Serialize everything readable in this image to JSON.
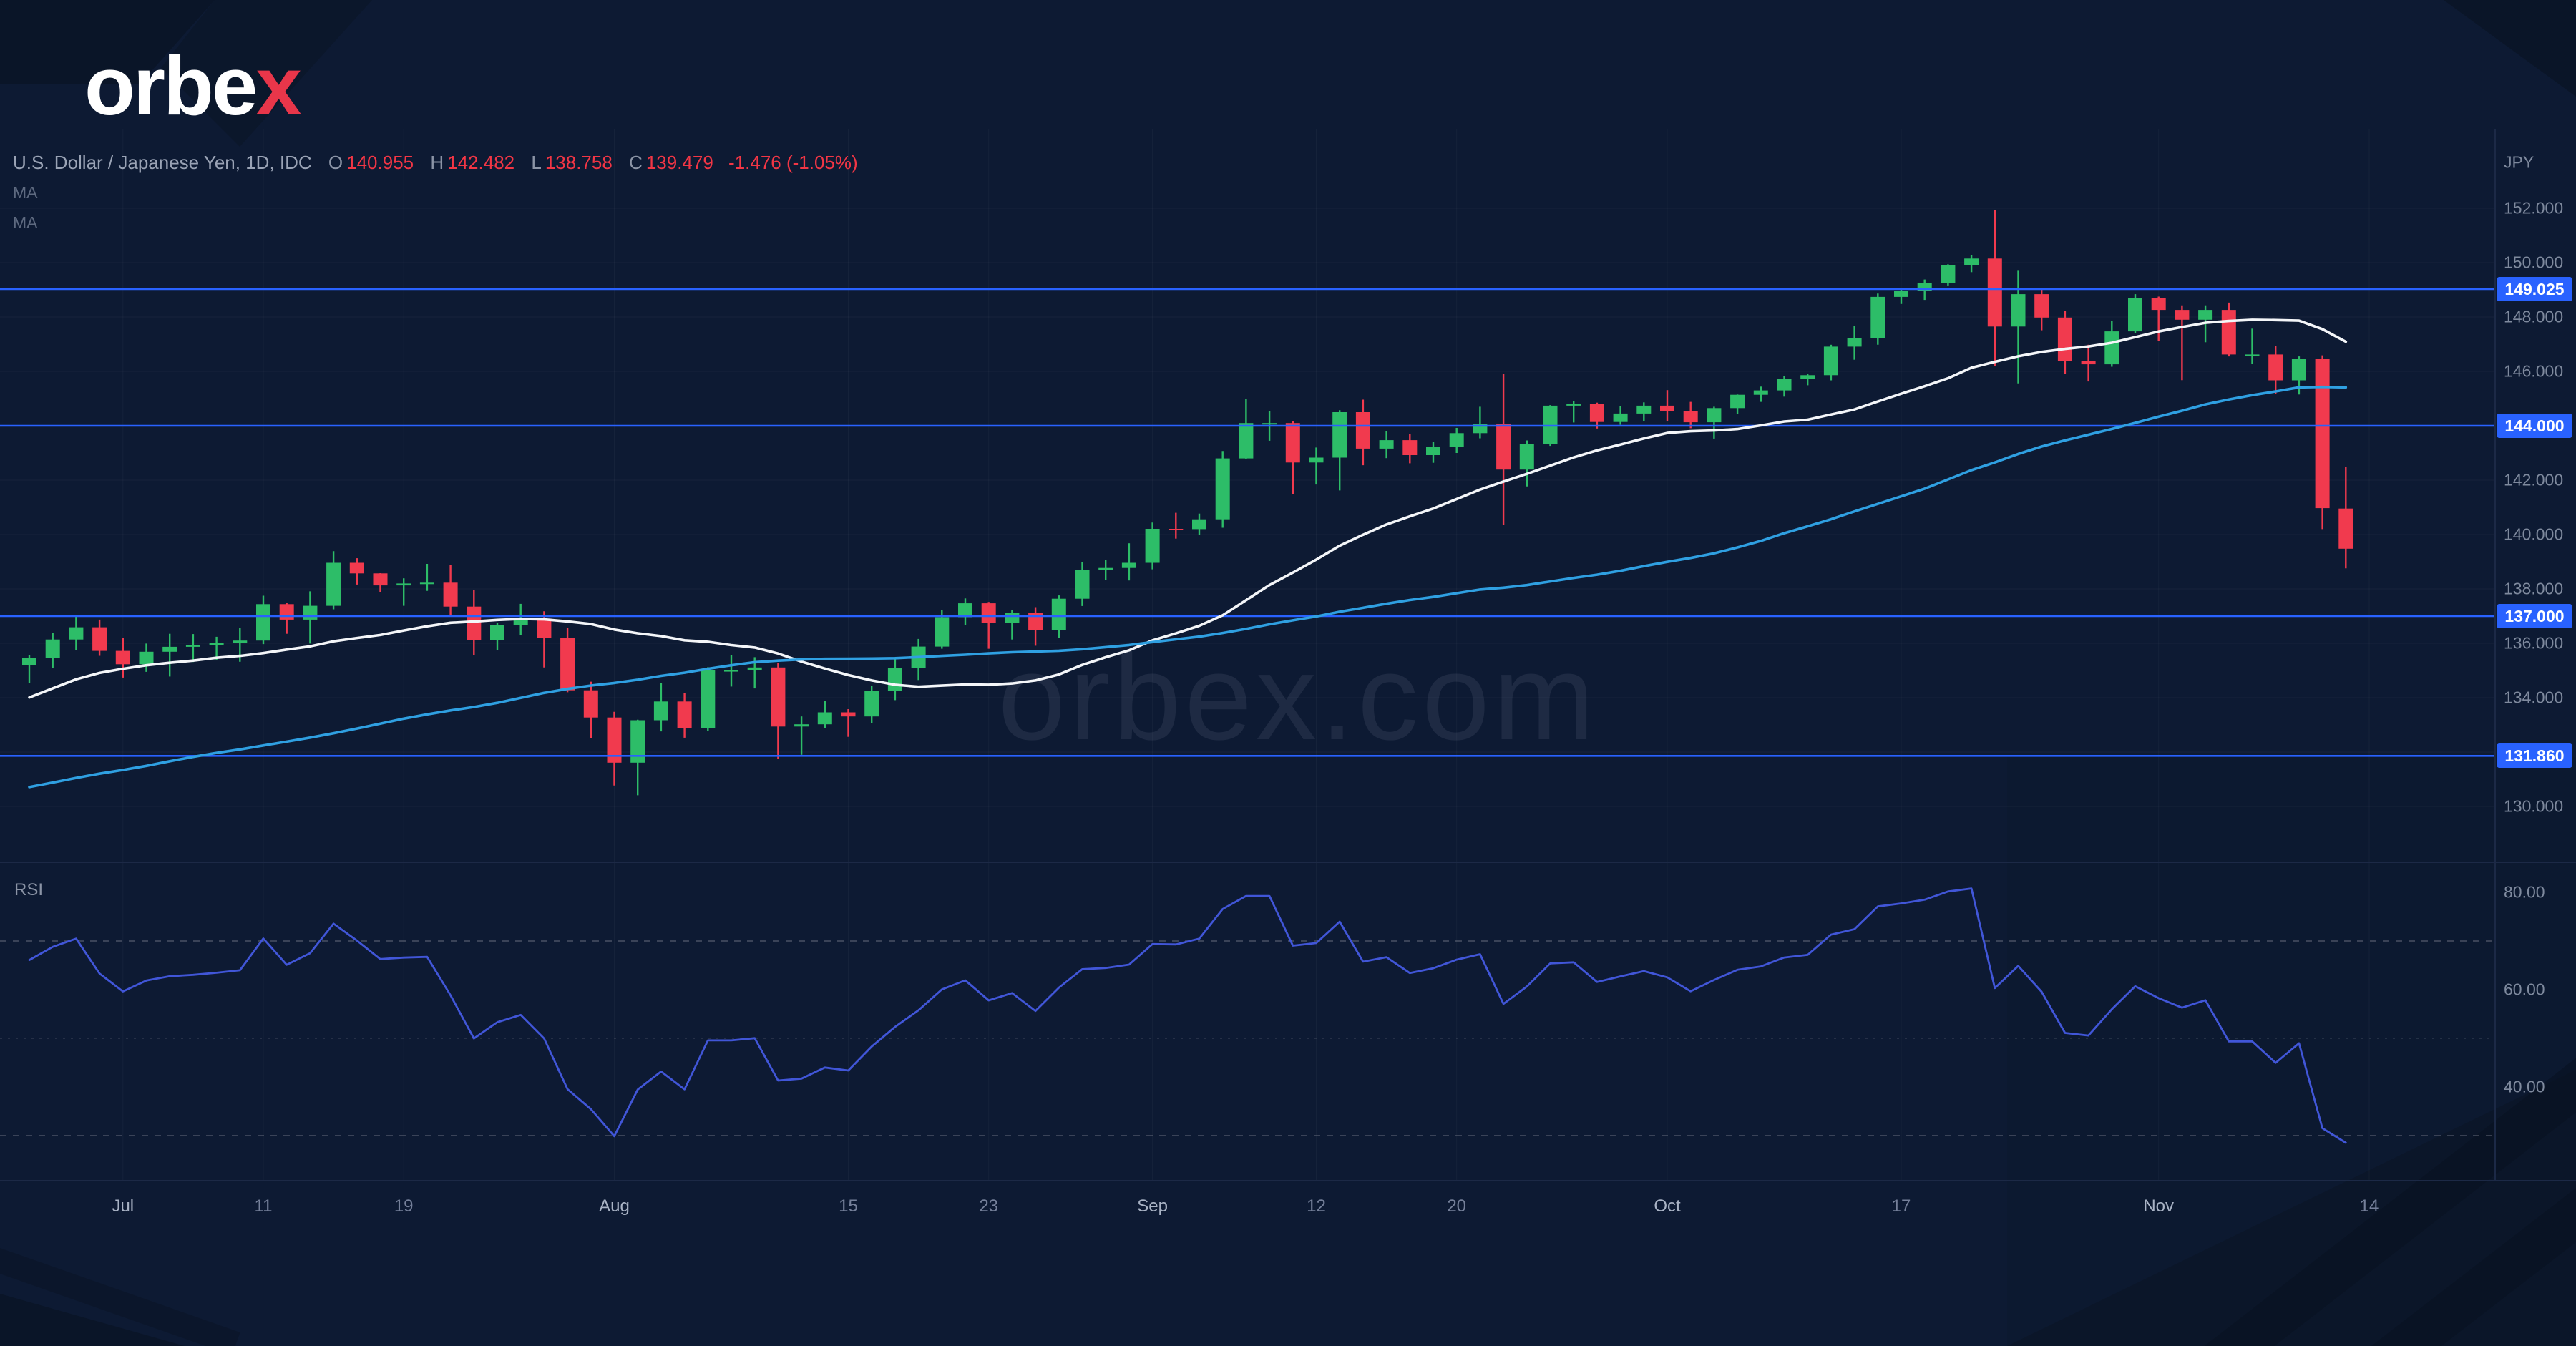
{
  "meta": {
    "watermark": "orbex.com"
  },
  "logo": {
    "text_main": "orbe",
    "text_x": "x"
  },
  "header": {
    "symbol_title": "U.S. Dollar / Japanese Yen, 1D, IDC",
    "ohlc": {
      "o_label": "O",
      "o": "140.955",
      "h_label": "H",
      "h": "142.482",
      "l_label": "L",
      "l": "138.758",
      "c_label": "C",
      "c": "139.479",
      "change": "-1.476 (-1.05%)"
    },
    "ma_labels": [
      "MA",
      "MA"
    ]
  },
  "price_axis": {
    "currency_label": "JPY",
    "ticks": [
      {
        "v": 152,
        "label": "152.000"
      },
      {
        "v": 150,
        "label": "150.000"
      },
      {
        "v": 148,
        "label": "148.000"
      },
      {
        "v": 146,
        "label": "146.000"
      },
      {
        "v": 142,
        "label": "142.000"
      },
      {
        "v": 140,
        "label": "140.000"
      },
      {
        "v": 138,
        "label": "138.000"
      },
      {
        "v": 136,
        "label": "136.000"
      },
      {
        "v": 134,
        "label": "134.000"
      },
      {
        "v": 130,
        "label": "130.000"
      }
    ],
    "badges": [
      {
        "price": 149.025,
        "label": "149.025"
      },
      {
        "price": 144.0,
        "label": "144.000"
      },
      {
        "price": 137.0,
        "label": "137.000"
      },
      {
        "price": 131.86,
        "label": "131.860"
      }
    ]
  },
  "time_axis": {
    "labels": [
      {
        "text": "Jul",
        "i": 4,
        "major": true
      },
      {
        "text": "11",
        "i": 10,
        "major": false
      },
      {
        "text": "19",
        "i": 16,
        "major": false
      },
      {
        "text": "Aug",
        "i": 25,
        "major": true
      },
      {
        "text": "15",
        "i": 35,
        "major": false
      },
      {
        "text": "23",
        "i": 41,
        "major": false
      },
      {
        "text": "Sep",
        "i": 48,
        "major": true
      },
      {
        "text": "12",
        "i": 55,
        "major": false
      },
      {
        "text": "20",
        "i": 61,
        "major": false
      },
      {
        "text": "Oct",
        "i": 70,
        "major": true
      },
      {
        "text": "17",
        "i": 80,
        "major": false
      },
      {
        "text": "Nov",
        "i": 91,
        "major": true
      },
      {
        "text": "14",
        "i": 100,
        "major": false
      }
    ]
  },
  "rsi": {
    "label": "RSI",
    "ticks": [
      {
        "v": 80,
        "label": "80.00"
      },
      {
        "v": 60,
        "label": "60.00"
      },
      {
        "v": 40,
        "label": "40.00"
      }
    ],
    "dashed_levels": [
      70,
      30
    ],
    "mid_level": 50
  },
  "colors": {
    "background": "#0d1a33",
    "accent_blue": "#2962ff",
    "bull": "#2dbd68",
    "bear": "#f13a4e",
    "axis_text": "#7f8a9e",
    "value_red": "#f23645",
    "logo_red": "#e8364a",
    "grid": "rgba(255,255,255,0.045)",
    "rsi_dash": "#7b7f8d",
    "separator": "#1c2946"
  },
  "chart_data": {
    "type": "candlestick",
    "symbol": "USDJPY",
    "timeframe": "1D",
    "title": "U.S. Dollar / Japanese Yen, 1D, IDC",
    "y_range_displayed": [
      130,
      152
    ],
    "level_lines": [
      149.025,
      144.0,
      137.0,
      131.86
    ],
    "candles": [
      [
        135.2,
        135.57,
        134.53,
        135.47
      ],
      [
        135.47,
        136.37,
        135.09,
        136.14
      ],
      [
        136.14,
        137.0,
        135.74,
        136.59
      ],
      [
        136.59,
        136.87,
        135.54,
        135.72
      ],
      [
        135.72,
        136.2,
        134.74,
        135.23
      ],
      [
        135.23,
        135.99,
        134.95,
        135.69
      ],
      [
        135.69,
        136.35,
        134.78,
        135.87
      ],
      [
        135.87,
        136.34,
        135.31,
        135.93
      ],
      [
        135.93,
        136.24,
        135.37,
        136.01
      ],
      [
        136.01,
        136.56,
        135.32,
        136.1
      ],
      [
        136.1,
        137.75,
        135.97,
        137.44
      ],
      [
        137.44,
        137.49,
        136.35,
        136.87
      ],
      [
        136.87,
        137.91,
        135.99,
        137.38
      ],
      [
        137.38,
        139.39,
        137.25,
        138.96
      ],
      [
        138.96,
        139.13,
        138.16,
        138.57
      ],
      [
        138.57,
        138.58,
        137.89,
        138.13
      ],
      [
        138.13,
        138.39,
        137.38,
        138.2
      ],
      [
        138.2,
        138.92,
        137.93,
        138.23
      ],
      [
        138.23,
        138.88,
        137.03,
        137.35
      ],
      [
        137.35,
        137.96,
        135.57,
        136.12
      ],
      [
        136.12,
        136.75,
        135.74,
        136.66
      ],
      [
        136.66,
        137.45,
        136.3,
        136.91
      ],
      [
        136.91,
        137.18,
        135.11,
        136.21
      ],
      [
        136.21,
        136.57,
        134.2,
        134.27
      ],
      [
        134.27,
        134.59,
        132.5,
        133.27
      ],
      [
        133.27,
        133.48,
        130.77,
        131.61
      ],
      [
        131.61,
        133.19,
        130.41,
        133.17
      ],
      [
        133.17,
        134.55,
        132.76,
        133.86
      ],
      [
        133.86,
        134.18,
        132.53,
        132.89
      ],
      [
        132.89,
        135.12,
        132.77,
        135.01
      ],
      [
        135.01,
        135.58,
        134.41,
        135.01
      ],
      [
        135.01,
        135.49,
        134.34,
        135.11
      ],
      [
        135.11,
        135.29,
        131.74,
        132.94
      ],
      [
        132.94,
        133.31,
        131.9,
        133.02
      ],
      [
        133.02,
        133.89,
        132.87,
        133.46
      ],
      [
        133.46,
        133.58,
        132.56,
        133.31
      ],
      [
        133.31,
        134.44,
        133.06,
        134.25
      ],
      [
        134.25,
        135.49,
        133.91,
        135.1
      ],
      [
        135.1,
        136.16,
        134.65,
        135.88
      ],
      [
        135.88,
        137.23,
        135.8,
        136.96
      ],
      [
        136.96,
        137.65,
        136.67,
        137.47
      ],
      [
        137.47,
        137.52,
        135.8,
        136.75
      ],
      [
        136.75,
        137.23,
        136.14,
        137.12
      ],
      [
        137.12,
        137.33,
        135.91,
        136.48
      ],
      [
        136.48,
        137.76,
        136.21,
        137.64
      ],
      [
        137.64,
        139.0,
        137.37,
        138.7
      ],
      [
        138.7,
        139.08,
        138.32,
        138.77
      ],
      [
        138.77,
        139.68,
        138.31,
        138.96
      ],
      [
        138.96,
        140.44,
        138.72,
        140.21
      ],
      [
        140.21,
        140.8,
        139.85,
        140.2
      ],
      [
        140.2,
        140.77,
        139.98,
        140.56
      ],
      [
        140.56,
        143.07,
        140.25,
        142.8
      ],
      [
        142.8,
        144.99,
        142.77,
        144.1
      ],
      [
        144.1,
        144.54,
        143.45,
        144.1
      ],
      [
        144.1,
        144.16,
        141.5,
        142.65
      ],
      [
        142.65,
        143.2,
        141.84,
        142.83
      ],
      [
        142.83,
        144.57,
        141.62,
        144.5
      ],
      [
        144.5,
        144.96,
        142.55,
        143.16
      ],
      [
        143.16,
        143.8,
        142.81,
        143.47
      ],
      [
        143.47,
        143.69,
        142.62,
        142.92
      ],
      [
        142.92,
        143.42,
        142.64,
        143.21
      ],
      [
        143.21,
        143.92,
        143.0,
        143.73
      ],
      [
        143.73,
        144.7,
        143.54,
        144.06
      ],
      [
        144.06,
        145.9,
        140.36,
        142.39
      ],
      [
        142.39,
        143.46,
        141.77,
        143.32
      ],
      [
        143.32,
        144.76,
        143.26,
        144.74
      ],
      [
        144.74,
        144.91,
        144.12,
        144.81
      ],
      [
        144.81,
        144.85,
        143.9,
        144.14
      ],
      [
        144.14,
        144.73,
        144.04,
        144.45
      ],
      [
        144.45,
        144.86,
        144.17,
        144.74
      ],
      [
        144.74,
        145.31,
        144.16,
        144.55
      ],
      [
        144.55,
        144.88,
        143.91,
        144.13
      ],
      [
        144.13,
        144.7,
        143.53,
        144.65
      ],
      [
        144.65,
        145.15,
        144.42,
        145.14
      ],
      [
        145.14,
        145.44,
        144.88,
        145.3
      ],
      [
        145.3,
        145.82,
        145.07,
        145.73
      ],
      [
        145.73,
        145.9,
        145.49,
        145.86
      ],
      [
        145.86,
        146.98,
        145.67,
        146.91
      ],
      [
        146.91,
        147.67,
        146.43,
        147.22
      ],
      [
        147.22,
        148.86,
        146.98,
        148.74
      ],
      [
        148.74,
        149.08,
        148.48,
        148.97
      ],
      [
        148.97,
        149.38,
        148.63,
        149.25
      ],
      [
        149.25,
        149.94,
        149.16,
        149.9
      ],
      [
        149.9,
        150.29,
        149.65,
        150.15
      ],
      [
        150.15,
        151.94,
        146.2,
        147.65
      ],
      [
        147.65,
        149.7,
        145.56,
        148.84
      ],
      [
        148.84,
        149.03,
        147.51,
        147.98
      ],
      [
        147.98,
        148.22,
        145.9,
        146.37
      ],
      [
        146.37,
        146.98,
        145.63,
        146.26
      ],
      [
        146.26,
        147.86,
        146.17,
        147.47
      ],
      [
        147.47,
        148.84,
        147.42,
        148.71
      ],
      [
        148.71,
        148.75,
        147.11,
        148.26
      ],
      [
        148.26,
        148.43,
        145.68,
        147.9
      ],
      [
        147.9,
        148.43,
        147.07,
        148.26
      ],
      [
        148.26,
        148.53,
        146.55,
        146.62
      ],
      [
        146.62,
        147.57,
        146.28,
        146.62
      ],
      [
        146.62,
        146.92,
        145.16,
        145.67
      ],
      [
        145.67,
        146.55,
        145.15,
        146.45
      ],
      [
        146.45,
        146.59,
        140.2,
        140.97
      ],
      [
        140.955,
        142.482,
        138.758,
        139.479
      ]
    ],
    "prehistory_closes": [
      126.5,
      127.9,
      128.0,
      127.9,
      128.5,
      128.2,
      127.2,
      127.9,
      128.7,
      129.8,
      130.2,
      129.7,
      130.1,
      130.9,
      129.9,
      129.2,
      128.9,
      130.4,
      130.1,
      129.8,
      129.0,
      127.7,
      127.1,
      126.9,
      127.2,
      126.8,
      127.3,
      126.7,
      127.1,
      127.8,
      128.6,
      129.4,
      130.0,
      131.0,
      132.2,
      133.1,
      134.0,
      134.4,
      133.9,
      134.7,
      135.4,
      134.3,
      135.0,
      135.2,
      136.2,
      135.9,
      134.9,
      135.1,
      134.8,
      135.2
    ],
    "overlays": [
      {
        "name": "MA",
        "period": 20,
        "color": "#f4f6f9"
      },
      {
        "name": "MA",
        "period": 50,
        "color": "#2fa0e2"
      }
    ],
    "indicator": {
      "type": "RSI",
      "period": 14,
      "color": "#4156d8",
      "range": [
        0,
        100
      ]
    }
  }
}
